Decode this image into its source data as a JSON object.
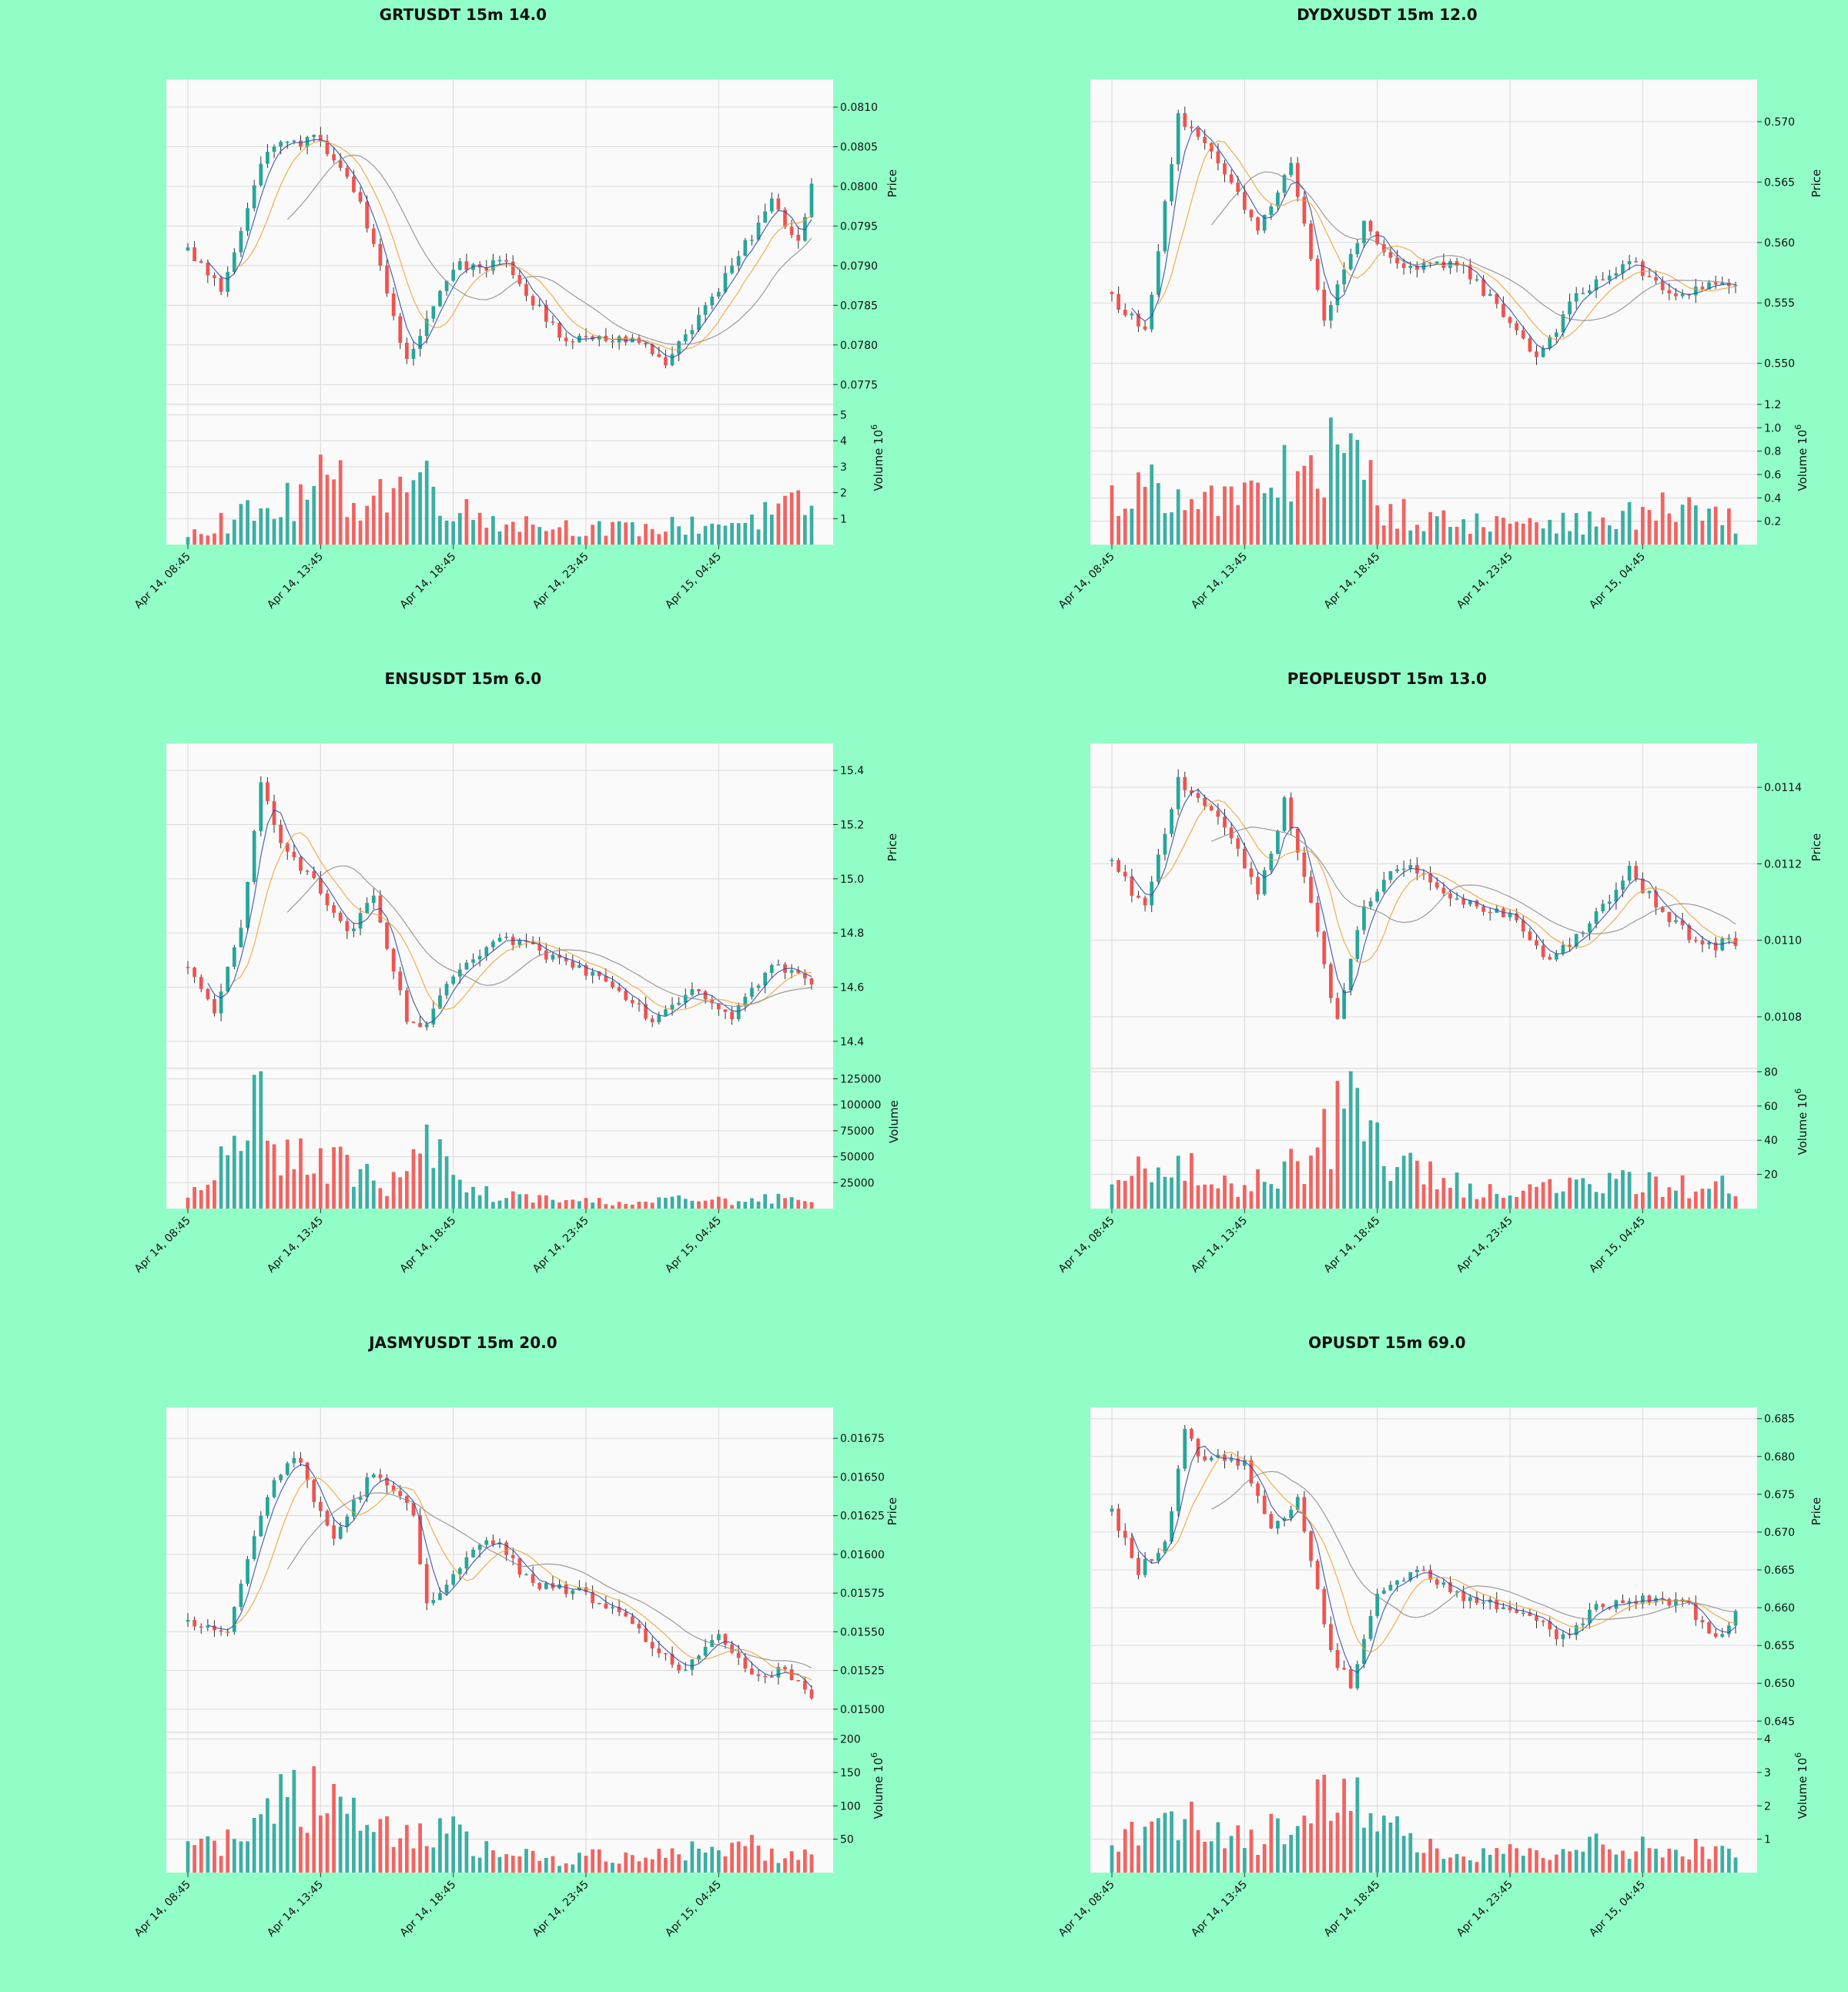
{
  "figure": {
    "background": "#92fec7",
    "panel_background": "#fafafa",
    "up_color": "#26a69a",
    "down_color": "#ef5350"
  },
  "chart_data": [
    {
      "type": "candlestick",
      "title": "GRTUSDT 15m 14.0",
      "ylabel": "Price",
      "volume_label": "Volume",
      "volume_exponent": "6",
      "x_tick_labels": [
        "Apr 14, 08:45",
        "Apr 14, 13:45",
        "Apr 14, 18:45",
        "Apr 14, 23:45",
        "Apr 15, 04:45"
      ],
      "price_ticks": [
        "0.0775",
        "0.0780",
        "0.0785",
        "0.0790",
        "0.0795",
        "0.0800",
        "0.0805",
        "0.0810"
      ],
      "price_range": [
        0.07725,
        0.08135
      ],
      "volume_ticks": [
        "1",
        "2",
        "3",
        "4",
        "5"
      ],
      "volume_range": [
        0,
        5.4
      ],
      "grid": true,
      "moving_averages": "3 lines",
      "key_prices": [
        {
          "candle": 0,
          "close": 0.0792
        },
        {
          "candle": 5,
          "close": 0.0787
        },
        {
          "candle": 12,
          "close": 0.0805
        },
        {
          "candle": 20,
          "close": 0.0806
        },
        {
          "candle": 26,
          "close": 0.0798
        },
        {
          "candle": 33,
          "close": 0.0778
        },
        {
          "candle": 40,
          "close": 0.079
        },
        {
          "candle": 48,
          "close": 0.079
        },
        {
          "candle": 56,
          "close": 0.0781
        },
        {
          "candle": 66,
          "close": 0.0781
        },
        {
          "candle": 72,
          "close": 0.0778
        },
        {
          "candle": 80,
          "close": 0.0787
        },
        {
          "candle": 88,
          "close": 0.0798
        },
        {
          "candle": 92,
          "close": 0.0793
        },
        {
          "candle": 94,
          "close": 0.08
        }
      ],
      "volume_profile": [
        0.6,
        0.9,
        1.2,
        1.6,
        2.4,
        1.8,
        2.2,
        2.6,
        1.2,
        1.0,
        0.8,
        0.7,
        0.6,
        0.6,
        0.7,
        0.8,
        0.9,
        1.2,
        1.5
      ]
    },
    {
      "type": "candlestick",
      "title": "DYDXUSDT 15m 12.0",
      "ylabel": "Price",
      "volume_label": "Volume",
      "volume_exponent": "6",
      "x_tick_labels": [
        "Apr 14, 08:45",
        "Apr 14, 13:45",
        "Apr 14, 18:45",
        "Apr 14, 23:45",
        "Apr 15, 04:45"
      ],
      "price_ticks": [
        "0.550",
        "0.555",
        "0.560",
        "0.565",
        "0.570"
      ],
      "price_range": [
        0.5466,
        0.5735
      ],
      "volume_ticks": [
        "0.2",
        "0.4",
        "0.6",
        "0.8",
        "1.0",
        "1.2"
      ],
      "volume_range": [
        0,
        1.2
      ],
      "grid": true,
      "moving_averages": "3 lines",
      "key_prices": [
        {
          "candle": 0,
          "close": 0.5555
        },
        {
          "candle": 5,
          "close": 0.5525
        },
        {
          "candle": 10,
          "close": 0.5705
        },
        {
          "candle": 16,
          "close": 0.5665
        },
        {
          "candle": 22,
          "close": 0.561
        },
        {
          "candle": 27,
          "close": 0.5665
        },
        {
          "candle": 32,
          "close": 0.5535
        },
        {
          "candle": 38,
          "close": 0.5615
        },
        {
          "candle": 44,
          "close": 0.5575
        },
        {
          "candle": 52,
          "close": 0.5585
        },
        {
          "candle": 60,
          "close": 0.5535
        },
        {
          "candle": 64,
          "close": 0.5505
        },
        {
          "candle": 70,
          "close": 0.5555
        },
        {
          "candle": 78,
          "close": 0.5585
        },
        {
          "candle": 84,
          "close": 0.5555
        },
        {
          "candle": 90,
          "close": 0.5565
        }
      ],
      "volume_profile": [
        0.35,
        0.55,
        0.5,
        0.35,
        0.4,
        0.6,
        0.75,
        0.7,
        0.3,
        0.2,
        0.2,
        0.18,
        0.2,
        0.2,
        0.18,
        0.25,
        0.3,
        0.25,
        0.2
      ]
    },
    {
      "type": "candlestick",
      "title": "ENSUSDT 15m 6.0",
      "ylabel": "Price",
      "volume_label": "Volume",
      "volume_exponent": "",
      "x_tick_labels": [
        "Apr 14, 08:45",
        "Apr 14, 13:45",
        "Apr 14, 18:45",
        "Apr 14, 23:45",
        "Apr 15, 04:45"
      ],
      "price_ticks": [
        "14.4",
        "14.6",
        "14.8",
        "15.0",
        "15.2",
        "15.4"
      ],
      "price_range": [
        14.3,
        15.5
      ],
      "volume_ticks": [
        "25000",
        "50000",
        "75000",
        "100000",
        "125000"
      ],
      "volume_range": [
        0,
        135000
      ],
      "grid": true,
      "moving_averages": "3 lines",
      "key_prices": [
        {
          "candle": 0,
          "close": 14.66
        },
        {
          "candle": 4,
          "close": 14.52
        },
        {
          "candle": 8,
          "close": 14.8
        },
        {
          "candle": 11,
          "close": 15.35
        },
        {
          "candle": 14,
          "close": 15.15
        },
        {
          "candle": 20,
          "close": 14.95
        },
        {
          "candle": 24,
          "close": 14.8
        },
        {
          "candle": 28,
          "close": 14.92
        },
        {
          "candle": 33,
          "close": 14.48
        },
        {
          "candle": 36,
          "close": 14.45
        },
        {
          "candle": 40,
          "close": 14.65
        },
        {
          "candle": 48,
          "close": 14.78
        },
        {
          "candle": 56,
          "close": 14.7
        },
        {
          "candle": 64,
          "close": 14.62
        },
        {
          "candle": 70,
          "close": 14.48
        },
        {
          "candle": 76,
          "close": 14.6
        },
        {
          "candle": 82,
          "close": 14.5
        },
        {
          "candle": 88,
          "close": 14.68
        },
        {
          "candle": 94,
          "close": 14.62
        }
      ],
      "volume_profile": [
        8000,
        40000,
        125000,
        45000,
        50000,
        30000,
        25000,
        60000,
        18000,
        12000,
        10000,
        8000,
        7000,
        6000,
        9000,
        8000,
        7000,
        10000,
        6000
      ]
    },
    {
      "type": "candlestick",
      "title": "PEOPLEUSDT 15m 13.0",
      "ylabel": "Price",
      "volume_label": "Volume",
      "volume_exponent": "6",
      "x_tick_labels": [
        "Apr 14, 08:45",
        "Apr 14, 13:45",
        "Apr 14, 18:45",
        "Apr 14, 23:45",
        "Apr 15, 04:45"
      ],
      "price_ticks": [
        "0.0108",
        "0.0110",
        "0.0112",
        "0.0114"
      ],
      "price_range": [
        0.010665,
        0.011515
      ],
      "volume_ticks": [
        "20",
        "40",
        "60",
        "80"
      ],
      "volume_range": [
        0,
        82
      ],
      "grid": true,
      "moving_averages": "3 lines",
      "key_prices": [
        {
          "candle": 0,
          "close": 0.0112
        },
        {
          "candle": 5,
          "close": 0.01108
        },
        {
          "candle": 10,
          "close": 0.01142
        },
        {
          "candle": 16,
          "close": 0.01133
        },
        {
          "candle": 22,
          "close": 0.01112
        },
        {
          "candle": 26,
          "close": 0.01136
        },
        {
          "candle": 30,
          "close": 0.0111
        },
        {
          "candle": 34,
          "close": 0.01078
        },
        {
          "candle": 38,
          "close": 0.0111
        },
        {
          "candle": 44,
          "close": 0.0112
        },
        {
          "candle": 52,
          "close": 0.0111
        },
        {
          "candle": 60,
          "close": 0.01106
        },
        {
          "candle": 66,
          "close": 0.01095
        },
        {
          "candle": 72,
          "close": 0.01104
        },
        {
          "candle": 78,
          "close": 0.01118
        },
        {
          "candle": 84,
          "close": 0.01105
        },
        {
          "candle": 90,
          "close": 0.01098
        },
        {
          "candle": 93,
          "close": 0.011
        }
      ],
      "volume_profile": [
        12,
        22,
        25,
        12,
        14,
        26,
        35,
        65,
        28,
        20,
        14,
        10,
        12,
        12,
        16,
        14,
        14,
        12,
        14
      ]
    },
    {
      "type": "candlestick",
      "title": "JASMYUSDT 15m 20.0",
      "ylabel": "Price",
      "volume_label": "Volume",
      "volume_exponent": "6",
      "x_tick_labels": [
        "Apr 14, 08:45",
        "Apr 14, 13:45",
        "Apr 14, 18:45",
        "Apr 14, 23:45",
        "Apr 15, 04:45"
      ],
      "price_ticks": [
        "0.01500",
        "0.01525",
        "0.01550",
        "0.01575",
        "0.01600",
        "0.01625",
        "0.01650",
        "0.01675"
      ],
      "price_range": [
        0.01485,
        0.01695
      ],
      "volume_ticks": [
        "50",
        "100",
        "150",
        "200"
      ],
      "volume_range": [
        0,
        210
      ],
      "grid": true,
      "moving_averages": "3 lines",
      "key_prices": [
        {
          "candle": 0,
          "close": 0.01555
        },
        {
          "candle": 6,
          "close": 0.0155
        },
        {
          "candle": 12,
          "close": 0.0164
        },
        {
          "candle": 16,
          "close": 0.01665
        },
        {
          "candle": 22,
          "close": 0.0161
        },
        {
          "candle": 28,
          "close": 0.01655
        },
        {
          "candle": 34,
          "close": 0.01625
        },
        {
          "candle": 36,
          "close": 0.01565
        },
        {
          "candle": 42,
          "close": 0.016
        },
        {
          "candle": 46,
          "close": 0.0161
        },
        {
          "candle": 52,
          "close": 0.0158
        },
        {
          "candle": 60,
          "close": 0.01575
        },
        {
          "candle": 68,
          "close": 0.0155
        },
        {
          "candle": 74,
          "close": 0.01525
        },
        {
          "candle": 80,
          "close": 0.01545
        },
        {
          "candle": 86,
          "close": 0.0152
        },
        {
          "candle": 90,
          "close": 0.01525
        },
        {
          "candle": 94,
          "close": 0.01505
        }
      ],
      "volume_profile": [
        45,
        40,
        60,
        140,
        95,
        70,
        55,
        80,
        45,
        30,
        25,
        20,
        25,
        30,
        35,
        30,
        45,
        30,
        25
      ]
    },
    {
      "type": "candlestick",
      "title": "OPUSDT 15m 69.0",
      "ylabel": "Price",
      "volume_label": "Volume",
      "volume_exponent": "6",
      "x_tick_labels": [
        "Apr 14, 08:45",
        "Apr 14, 13:45",
        "Apr 14, 18:45",
        "Apr 14, 23:45",
        "Apr 15, 04:45"
      ],
      "price_ticks": [
        "0.645",
        "0.650",
        "0.655",
        "0.660",
        "0.665",
        "0.670",
        "0.675",
        "0.680",
        "0.685"
      ],
      "price_range": [
        0.6435,
        0.6865
      ],
      "volume_ticks": [
        "1",
        "2",
        "3",
        "4"
      ],
      "volume_range": [
        0,
        4.2
      ],
      "grid": true,
      "moving_averages": "3 lines",
      "key_prices": [
        {
          "candle": 0,
          "close": 0.6725
        },
        {
          "candle": 4,
          "close": 0.665
        },
        {
          "candle": 8,
          "close": 0.668
        },
        {
          "candle": 11,
          "close": 0.683
        },
        {
          "candle": 14,
          "close": 0.6795
        },
        {
          "candle": 20,
          "close": 0.6795
        },
        {
          "candle": 24,
          "close": 0.67
        },
        {
          "candle": 28,
          "close": 0.6745
        },
        {
          "candle": 33,
          "close": 0.654
        },
        {
          "candle": 36,
          "close": 0.65
        },
        {
          "candle": 40,
          "close": 0.662
        },
        {
          "candle": 46,
          "close": 0.665
        },
        {
          "candle": 54,
          "close": 0.661
        },
        {
          "candle": 62,
          "close": 0.6595
        },
        {
          "candle": 68,
          "close": 0.656
        },
        {
          "candle": 74,
          "close": 0.6605
        },
        {
          "candle": 80,
          "close": 0.661
        },
        {
          "candle": 86,
          "close": 0.661
        },
        {
          "candle": 91,
          "close": 0.656
        },
        {
          "candle": 94,
          "close": 0.6595
        }
      ],
      "volume_profile": [
        0.9,
        1.1,
        2.2,
        1.2,
        1.1,
        1.2,
        2.0,
        3.2,
        1.4,
        0.7,
        0.5,
        0.5,
        0.6,
        0.5,
        0.8,
        0.9,
        0.8,
        0.7,
        0.8
      ]
    }
  ]
}
